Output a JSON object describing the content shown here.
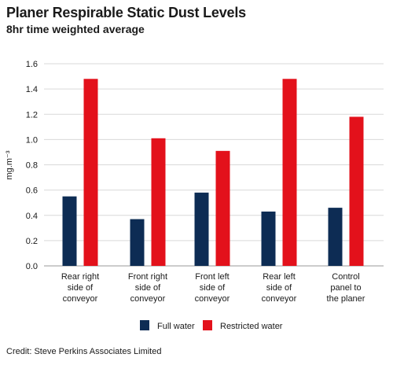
{
  "title": "Planer Respirable Static Dust Levels",
  "subtitle": "8hr time weighted average",
  "credit": "Credit: Steve Perkins Associates Limited",
  "chart_data": {
    "type": "bar",
    "ylabel": "mg.m⁻³",
    "ylim": [
      0,
      1.6
    ],
    "yticks": [
      "0.0",
      "0.2",
      "0.4",
      "0.6",
      "0.8",
      "1.0",
      "1.2",
      "1.4",
      "1.6"
    ],
    "grid": true,
    "legend_position": "bottom",
    "categories": [
      [
        "Rear right",
        "side of",
        "conveyor"
      ],
      [
        "Front right",
        "side of",
        "conveyor"
      ],
      [
        "Front left",
        "side of",
        "conveyor"
      ],
      [
        "Rear left",
        "side of",
        "conveyor"
      ],
      [
        "Control",
        "panel to",
        "the planer"
      ]
    ],
    "series": [
      {
        "name": "Full water",
        "color": "#0d2c54",
        "values": [
          0.55,
          0.37,
          0.58,
          0.43,
          0.46
        ]
      },
      {
        "name": "Restricted water",
        "color": "#e3111b",
        "values": [
          1.48,
          1.01,
          0.91,
          1.48,
          1.18
        ]
      }
    ]
  }
}
